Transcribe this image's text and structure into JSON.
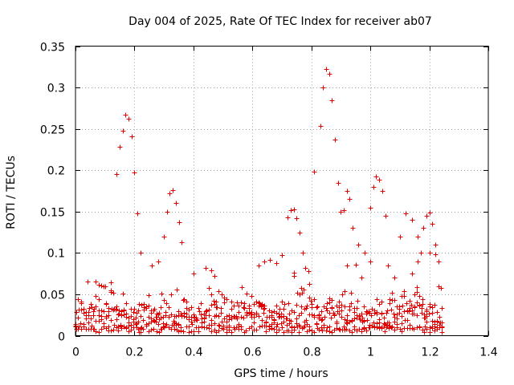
{
  "chart_data": {
    "type": "scatter",
    "title": "Day 004 of 2025, Rate Of TEC Index for receiver ab07",
    "xlabel": "GPS time / hours",
    "ylabel": "ROTI / TECUs",
    "xlim": [
      0,
      1.4
    ],
    "ylim": [
      0,
      0.35
    ],
    "x_ticks": [
      0,
      0.2,
      0.4,
      0.6,
      0.8,
      1,
      1.2,
      1.4
    ],
    "x_tick_labels": [
      "0",
      "0.2",
      "0.4",
      "0.6",
      "0.8",
      "1",
      "1.2",
      "1.4"
    ],
    "y_ticks": [
      0,
      0.05,
      0.1,
      0.15,
      0.2,
      0.25,
      0.3,
      0.35
    ],
    "y_tick_labels": [
      "0",
      "0.05",
      "0.1",
      "0.15",
      "0.2",
      "0.25",
      "0.3",
      "0.35"
    ],
    "grid": true,
    "marker": "plus",
    "series_color": "#e00000",
    "notes": "Dense scatter of ROTI values from ~0 to ~1.25 h; peaks near 0.265 at 0.16 h, 0.175 at 0.32 h, 0.152 at 0.73 h, 0.322 at 0.85 h, 0.19 at 1.02 h, 0.149 at 1.18 h.",
    "series": [
      {
        "name": "ROTI",
        "x": [
          0.14,
          0.15,
          0.16,
          0.17,
          0.18,
          0.19,
          0.2,
          0.21,
          0.22,
          0.3,
          0.31,
          0.32,
          0.33,
          0.34,
          0.35,
          0.36,
          0.72,
          0.73,
          0.74,
          0.75,
          0.76,
          0.81,
          0.83,
          0.84,
          0.85,
          0.86,
          0.87,
          0.88,
          0.89,
          0.9,
          0.91,
          0.92,
          0.93,
          0.94,
          0.96,
          0.98,
          1.0,
          1.01,
          1.02,
          1.03,
          1.04,
          1.05,
          1.1,
          1.12,
          1.14,
          1.16,
          1.17,
          1.18,
          1.19,
          1.2,
          1.21,
          1.22,
          1.23
        ],
        "y": [
          0.195,
          0.228,
          0.248,
          0.267,
          0.262,
          0.241,
          0.197,
          0.148,
          0.1,
          0.12,
          0.15,
          0.172,
          0.176,
          0.16,
          0.137,
          0.113,
          0.143,
          0.152,
          0.153,
          0.142,
          0.125,
          0.198,
          0.254,
          0.3,
          0.322,
          0.317,
          0.285,
          0.237,
          0.185,
          0.15,
          0.152,
          0.175,
          0.165,
          0.13,
          0.11,
          0.1,
          0.155,
          0.18,
          0.192,
          0.189,
          0.175,
          0.145,
          0.12,
          0.148,
          0.14,
          0.12,
          0.1,
          0.13,
          0.145,
          0.149,
          0.135,
          0.11,
          0.09
        ]
      }
    ]
  }
}
